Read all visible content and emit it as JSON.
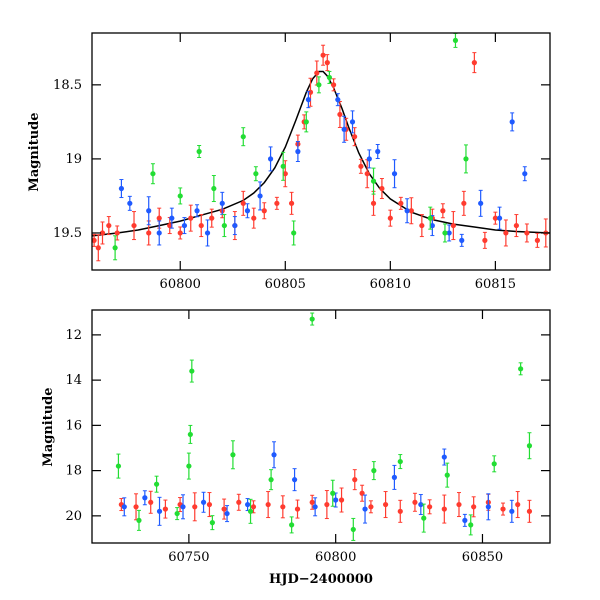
{
  "chart_data": [
    {
      "type": "scatter",
      "panel": "top",
      "xlabel": "",
      "ylabel": "Magnitude",
      "xlim": [
        60795.8,
        60817.6
      ],
      "ylim": [
        19.75,
        18.15
      ],
      "y_inverted": true,
      "x_ticks": [
        60800,
        60805,
        60810,
        60815
      ],
      "x_tick_labels": [
        "60800",
        "60805",
        "60810",
        "60815"
      ],
      "y_ticks": [
        18.5,
        19,
        19.5
      ],
      "y_tick_labels": [
        "18.5",
        "19",
        "19.5"
      ],
      "grid": false,
      "legend": "none",
      "series": [
        {
          "color": "#ff3b2f",
          "points": [
            [
              60795.9,
              19.55
            ],
            [
              60796.1,
              19.6
            ],
            [
              60796.3,
              19.5
            ],
            [
              60796.6,
              19.45
            ],
            [
              60797.0,
              19.5
            ],
            [
              60797.8,
              19.45
            ],
            [
              60798.5,
              19.5
            ],
            [
              60799.0,
              19.4
            ],
            [
              60799.5,
              19.45
            ],
            [
              60800.0,
              19.5
            ],
            [
              60800.5,
              19.4
            ],
            [
              60801.0,
              19.45
            ],
            [
              60801.5,
              19.4
            ],
            [
              60802.0,
              19.35
            ],
            [
              60802.6,
              19.45
            ],
            [
              60803.0,
              19.3
            ],
            [
              60803.5,
              19.4
            ],
            [
              60804.0,
              19.35
            ],
            [
              60804.6,
              19.3
            ],
            [
              60805.0,
              19.1
            ],
            [
              60805.3,
              19.3
            ],
            [
              60805.6,
              18.9
            ],
            [
              60805.9,
              18.75
            ],
            [
              60806.2,
              18.55
            ],
            [
              60806.5,
              18.42
            ],
            [
              60806.8,
              18.3
            ],
            [
              60807.0,
              18.35
            ],
            [
              60807.3,
              18.5
            ],
            [
              60807.6,
              18.7
            ],
            [
              60807.9,
              18.8
            ],
            [
              60808.3,
              18.85
            ],
            [
              60808.6,
              19.05
            ],
            [
              60808.9,
              19.1
            ],
            [
              60809.2,
              19.3
            ],
            [
              60809.6,
              19.2
            ],
            [
              60810.0,
              19.4
            ],
            [
              60810.5,
              19.3
            ],
            [
              60811.0,
              19.35
            ],
            [
              60811.5,
              19.45
            ],
            [
              60812.0,
              19.4
            ],
            [
              60812.5,
              19.35
            ],
            [
              60813.0,
              19.45
            ],
            [
              60813.5,
              19.3
            ],
            [
              60814.0,
              18.35
            ],
            [
              60814.5,
              19.55
            ],
            [
              60815.0,
              19.4
            ],
            [
              60815.5,
              19.5
            ],
            [
              60816.0,
              19.45
            ],
            [
              60816.5,
              19.5
            ],
            [
              60817.0,
              19.55
            ],
            [
              60817.4,
              19.5
            ]
          ]
        },
        {
          "color": "#1f5aff",
          "points": [
            [
              60797.2,
              19.2
            ],
            [
              60797.6,
              19.3
            ],
            [
              60798.5,
              19.35
            ],
            [
              60799.0,
              19.5
            ],
            [
              60799.6,
              19.4
            ],
            [
              60800.2,
              19.45
            ],
            [
              60800.8,
              19.35
            ],
            [
              60801.3,
              19.5
            ],
            [
              60802.0,
              19.3
            ],
            [
              60802.6,
              19.45
            ],
            [
              60803.2,
              19.35
            ],
            [
              60803.8,
              19.25
            ],
            [
              60804.3,
              19.0
            ],
            [
              60805.6,
              18.95
            ],
            [
              60806.1,
              18.6
            ],
            [
              60807.5,
              18.6
            ],
            [
              60807.8,
              18.8
            ],
            [
              60808.2,
              18.75
            ],
            [
              60809.0,
              19.0
            ],
            [
              60809.4,
              18.95
            ],
            [
              60810.2,
              19.1
            ],
            [
              60810.8,
              19.35
            ],
            [
              60812.0,
              19.45
            ],
            [
              60812.8,
              19.5
            ],
            [
              60813.4,
              19.55
            ],
            [
              60814.3,
              19.3
            ],
            [
              60815.2,
              19.4
            ],
            [
              60815.8,
              18.75
            ],
            [
              60816.4,
              19.1
            ]
          ]
        },
        {
          "color": "#22dd33",
          "points": [
            [
              60796.9,
              19.6
            ],
            [
              60798.7,
              19.1
            ],
            [
              60800.0,
              19.25
            ],
            [
              60800.9,
              18.95
            ],
            [
              60801.6,
              19.2
            ],
            [
              60802.1,
              19.45
            ],
            [
              60803.0,
              18.85
            ],
            [
              60803.6,
              19.1
            ],
            [
              60804.9,
              19.05
            ],
            [
              60805.4,
              19.5
            ],
            [
              60806.0,
              18.75
            ],
            [
              60806.6,
              18.5
            ],
            [
              60807.1,
              18.45
            ],
            [
              60809.2,
              19.15
            ],
            [
              60811.9,
              19.4
            ],
            [
              60812.6,
              19.5
            ],
            [
              60813.1,
              18.2
            ],
            [
              60813.6,
              19.0
            ]
          ]
        }
      ],
      "model_curve": {
        "type": "line",
        "color": "#000000",
        "x": [
          60795.8,
          60797,
          60798,
          60799,
          60800,
          60801,
          60802,
          60803,
          60803.5,
          60804,
          60804.5,
          60805,
          60805.5,
          60806,
          60806.3,
          60806.6,
          60806.8,
          60807,
          60807.3,
          60807.7,
          60808,
          60808.5,
          60809,
          60809.5,
          60810,
          60811,
          60812,
          60813,
          60814,
          60815,
          60816,
          60817.6
        ],
        "y": [
          19.52,
          19.5,
          19.48,
          19.45,
          19.42,
          19.38,
          19.34,
          19.28,
          19.23,
          19.16,
          19.06,
          18.92,
          18.74,
          18.55,
          18.46,
          18.41,
          18.41,
          18.44,
          18.52,
          18.66,
          18.78,
          18.96,
          19.1,
          19.2,
          19.27,
          19.36,
          19.41,
          19.44,
          19.46,
          19.48,
          19.49,
          19.5
        ]
      }
    },
    {
      "type": "scatter",
      "panel": "bottom",
      "xlabel": "HJD−2400000",
      "ylabel": "Magnitude",
      "xlim": [
        60717,
        60873
      ],
      "ylim": [
        21.2,
        10.9
      ],
      "y_inverted": true,
      "x_ticks": [
        60750,
        60800,
        60850
      ],
      "x_tick_labels": [
        "60750",
        "60800",
        "60850"
      ],
      "y_ticks": [
        12,
        14,
        16,
        18,
        20
      ],
      "y_tick_labels": [
        "12",
        "14",
        "16",
        "18",
        "20"
      ],
      "grid": false,
      "legend": "none",
      "series": [
        {
          "color": "#ff3b2f",
          "points": [
            [
              60727,
              19.5
            ],
            [
              60732,
              19.6
            ],
            [
              60737,
              19.4
            ],
            [
              60742,
              19.7
            ],
            [
              60747,
              19.5
            ],
            [
              60752,
              19.6
            ],
            [
              60757,
              19.5
            ],
            [
              60762,
              19.7
            ],
            [
              60767,
              19.4
            ],
            [
              60772,
              19.6
            ],
            [
              60777,
              19.5
            ],
            [
              60782,
              19.6
            ],
            [
              60787,
              19.7
            ],
            [
              60792,
              19.4
            ],
            [
              60797,
              19.5
            ],
            [
              60802,
              19.3
            ],
            [
              60806.5,
              18.4
            ],
            [
              60809,
              19.0
            ],
            [
              60812,
              19.6
            ],
            [
              60817,
              19.5
            ],
            [
              60822,
              19.8
            ],
            [
              60827,
              19.4
            ],
            [
              60832,
              19.6
            ],
            [
              60837,
              19.7
            ],
            [
              60842,
              19.5
            ],
            [
              60847,
              19.6
            ],
            [
              60852,
              19.4
            ],
            [
              60857,
              19.7
            ],
            [
              60862,
              19.5
            ],
            [
              60866,
              19.8
            ]
          ]
        },
        {
          "color": "#1f5aff",
          "points": [
            [
              60728,
              19.6
            ],
            [
              60735,
              19.2
            ],
            [
              60740,
              19.8
            ],
            [
              60748,
              19.6
            ],
            [
              60755,
              19.4
            ],
            [
              60763,
              19.9
            ],
            [
              60770,
              19.5
            ],
            [
              60779,
              17.3
            ],
            [
              60786,
              18.4
            ],
            [
              60793,
              19.6
            ],
            [
              60800,
              19.3
            ],
            [
              60810,
              19.7
            ],
            [
              60820,
              18.3
            ],
            [
              60829,
              19.5
            ],
            [
              60837,
              17.4
            ],
            [
              60844,
              20.2
            ],
            [
              60852,
              19.6
            ],
            [
              60860,
              19.8
            ]
          ]
        },
        {
          "color": "#22dd33",
          "points": [
            [
              60726,
              17.8
            ],
            [
              60733,
              20.2
            ],
            [
              60739,
              18.6
            ],
            [
              60746,
              19.9
            ],
            [
              60750,
              17.8
            ],
            [
              60751,
              13.6
            ],
            [
              60750.5,
              16.4
            ],
            [
              60758,
              20.3
            ],
            [
              60765,
              17.3
            ],
            [
              60771,
              19.8
            ],
            [
              60778,
              18.4
            ],
            [
              60785,
              20.4
            ],
            [
              60792,
              11.3
            ],
            [
              60799,
              19.0
            ],
            [
              60806,
              20.6
            ],
            [
              60813,
              18.0
            ],
            [
              60822,
              17.6
            ],
            [
              60830,
              20.1
            ],
            [
              60838,
              18.2
            ],
            [
              60846,
              20.4
            ],
            [
              60854,
              17.7
            ],
            [
              60863,
              13.5
            ],
            [
              60866,
              16.9
            ]
          ]
        }
      ]
    }
  ]
}
